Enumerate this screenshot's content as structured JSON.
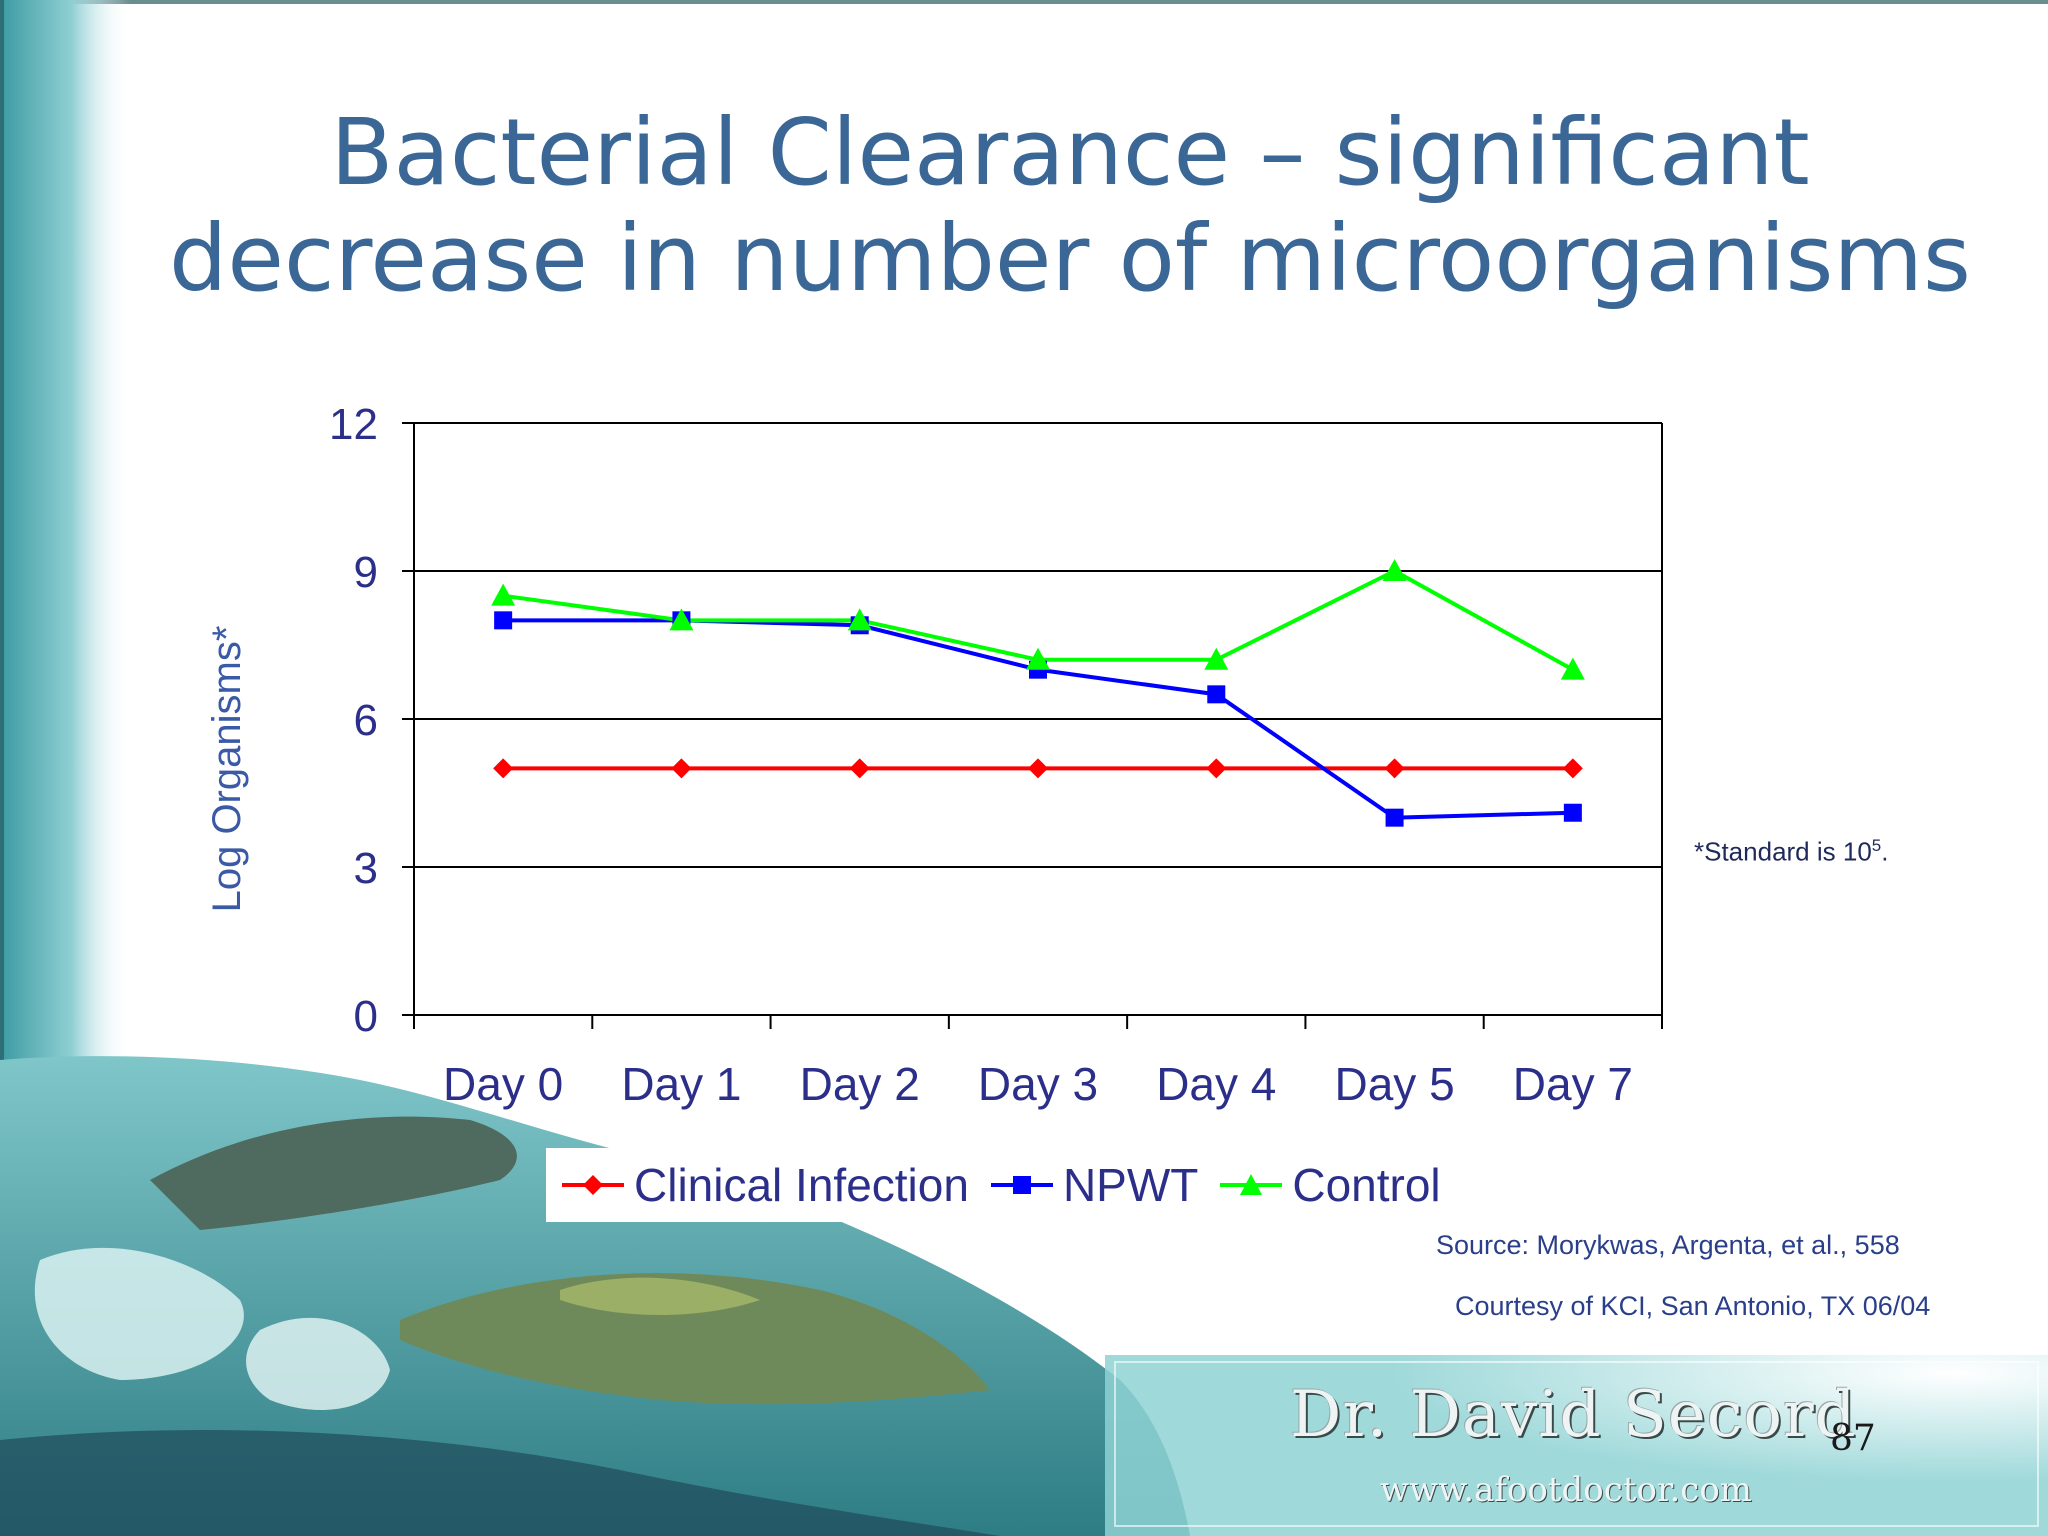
{
  "slide": {
    "title_line1": "Bacterial Clearance – significant",
    "title_line2": "decrease in number of microorganisms",
    "footnote_prefix": "*Standard is 10",
    "footnote_exponent": "5",
    "footnote_suffix": ".",
    "source": "Source: Morykwas, Argenta, et al., 558",
    "courtesy": "Courtesy of KCI, San Antonio, TX 06/04",
    "brand_name": "Dr. David Secord",
    "brand_url": "www.afootdoctor.com",
    "page_number": "87"
  },
  "colors": {
    "title": "#3a6796",
    "axis_text": "#2b2f8a",
    "clinical_infection": "#ff0000",
    "npwt": "#0000ff",
    "control": "#00ff00"
  },
  "chart_data": {
    "type": "line",
    "title": "",
    "xlabel": "",
    "ylabel": "Log Organisms*",
    "categories": [
      "Day 0",
      "Day 1",
      "Day 2",
      "Day 3",
      "Day 4",
      "Day 5",
      "Day 7"
    ],
    "ylim": [
      0,
      12
    ],
    "yticks": [
      0,
      3,
      6,
      9,
      12
    ],
    "grid": true,
    "legend_position": "bottom",
    "series": [
      {
        "name": "Clinical Infection",
        "marker": "diamond",
        "color": "#ff0000",
        "values": [
          5,
          5,
          5,
          5,
          5,
          5,
          5
        ]
      },
      {
        "name": "NPWT",
        "marker": "square",
        "color": "#0000ff",
        "values": [
          8.0,
          8.0,
          7.9,
          7.0,
          6.5,
          4.0,
          4.1
        ]
      },
      {
        "name": "Control",
        "marker": "triangle",
        "color": "#00ff00",
        "values": [
          8.5,
          8.0,
          8.0,
          7.2,
          7.2,
          9.0,
          7.0
        ]
      }
    ]
  }
}
